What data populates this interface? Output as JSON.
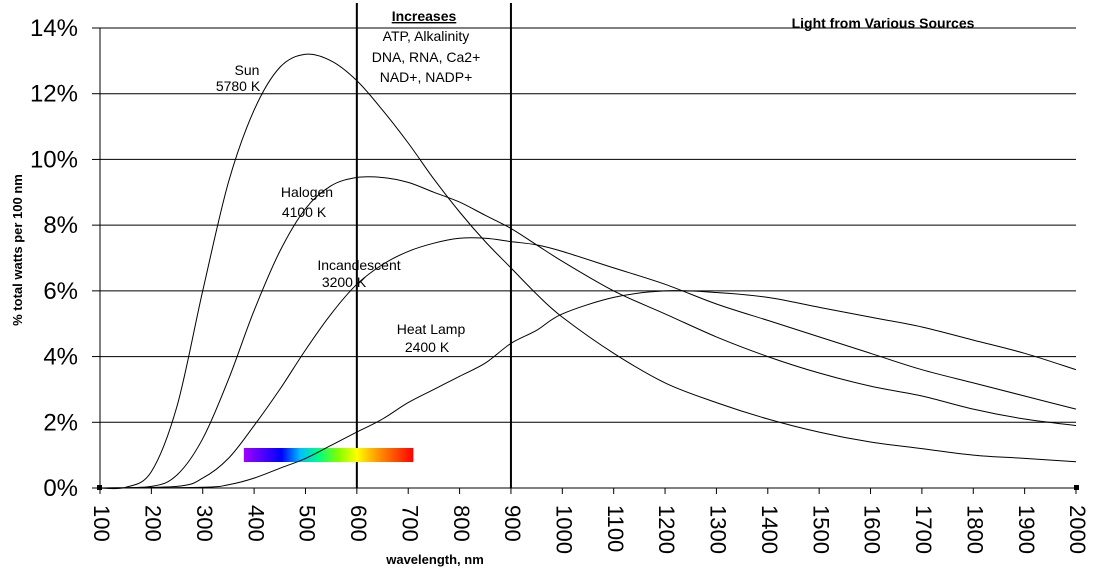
{
  "chart_data": {
    "type": "line",
    "title": "Light from Various Sources",
    "xlabel": "wavelength, nm",
    "ylabel": "% total watts per 100 nm",
    "xlim": [
      100,
      2000
    ],
    "ylim": [
      0,
      14
    ],
    "x_ticks": [
      "100",
      "200",
      "300",
      "400",
      "500",
      "600",
      "700",
      "800",
      "900",
      "1000",
      "1100",
      "1200",
      "1300",
      "1400",
      "1500",
      "1600",
      "1700",
      "1800",
      "1900",
      "2000"
    ],
    "y_ticks": [
      "0%",
      "2%",
      "4%",
      "6%",
      "8%",
      "10%",
      "12%",
      "14%"
    ],
    "grid": "horizontal",
    "series": [
      {
        "name": "Sun",
        "temp": "5780 K",
        "x": [
          100,
          150,
          200,
          250,
          300,
          350,
          400,
          450,
          500,
          550,
          600,
          650,
          700,
          750,
          800,
          850,
          900,
          950,
          1000,
          1100,
          1200,
          1300,
          1400,
          1500,
          1600,
          1700,
          1800,
          1900,
          2000
        ],
        "y": [
          0.0,
          0.02,
          0.5,
          2.5,
          6.0,
          9.3,
          11.5,
          12.8,
          13.2,
          13.0,
          12.4,
          11.5,
          10.5,
          9.4,
          8.4,
          7.5,
          6.7,
          5.9,
          5.2,
          4.1,
          3.2,
          2.6,
          2.1,
          1.7,
          1.4,
          1.2,
          1.0,
          0.9,
          0.8
        ]
      },
      {
        "name": "Halogen",
        "temp": "4100 K",
        "x": [
          100,
          200,
          250,
          300,
          350,
          400,
          450,
          500,
          550,
          600,
          650,
          700,
          750,
          800,
          850,
          900,
          950,
          1000,
          1100,
          1200,
          1300,
          1400,
          1500,
          1600,
          1700,
          1800,
          1900,
          2000
        ],
        "y": [
          0.0,
          0.05,
          0.4,
          1.5,
          3.3,
          5.4,
          7.2,
          8.5,
          9.2,
          9.45,
          9.45,
          9.3,
          9.0,
          8.7,
          8.3,
          7.9,
          7.4,
          6.9,
          6.0,
          5.3,
          4.6,
          4.0,
          3.5,
          3.1,
          2.8,
          2.4,
          2.1,
          1.9
        ]
      },
      {
        "name": "Incandescent",
        "temp": "3200 K",
        "x": [
          100,
          250,
          300,
          350,
          400,
          450,
          500,
          550,
          600,
          650,
          700,
          750,
          800,
          850,
          900,
          950,
          1000,
          1100,
          1200,
          1300,
          1400,
          1500,
          1600,
          1700,
          1800,
          1900,
          2000
        ],
        "y": [
          0.0,
          0.05,
          0.3,
          0.9,
          1.9,
          3.0,
          4.2,
          5.3,
          6.2,
          6.8,
          7.2,
          7.45,
          7.6,
          7.6,
          7.5,
          7.4,
          7.2,
          6.7,
          6.2,
          5.6,
          5.1,
          4.6,
          4.1,
          3.6,
          3.2,
          2.8,
          2.4
        ]
      },
      {
        "name": "Heat Lamp",
        "temp": "2400 K",
        "x": [
          100,
          300,
          350,
          400,
          450,
          500,
          550,
          600,
          650,
          700,
          750,
          800,
          850,
          900,
          950,
          1000,
          1100,
          1200,
          1300,
          1400,
          1500,
          1600,
          1700,
          1800,
          1900,
          2000
        ],
        "y": [
          0.0,
          0.02,
          0.1,
          0.3,
          0.6,
          0.9,
          1.3,
          1.7,
          2.1,
          2.6,
          3.0,
          3.4,
          3.8,
          4.4,
          4.8,
          5.3,
          5.8,
          6.0,
          5.95,
          5.8,
          5.5,
          5.2,
          4.9,
          4.5,
          4.1,
          3.6
        ]
      }
    ],
    "annotations": {
      "increases_header": "Increases",
      "increases_lines": [
        "ATP, Alkalinity",
        "DNA, RNA, Ca2+",
        "NAD+, NADP+"
      ],
      "markers_nm": [
        600,
        900
      ],
      "visible_spectrum_nm": [
        380,
        710
      ]
    }
  },
  "colors": {
    "spectrum": [
      "#a000ff",
      "#5000ff",
      "#0000ff",
      "#00c0ff",
      "#00ff80",
      "#80ff00",
      "#ffff00",
      "#ffa000",
      "#ff5000",
      "#ff0000"
    ]
  }
}
